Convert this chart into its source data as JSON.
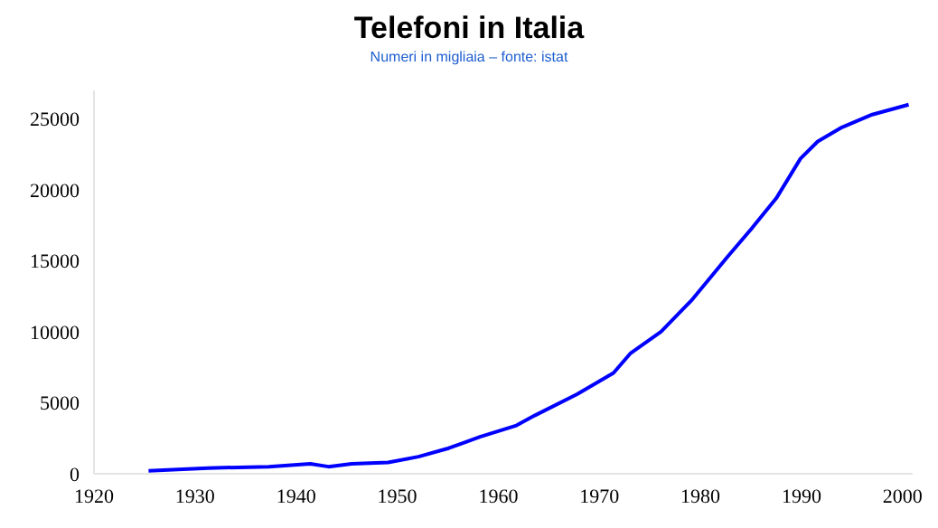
{
  "chart_data": {
    "type": "line",
    "title": "Telefoni in Italia",
    "subtitle": "Numeri in migliaia – fonte: istat",
    "x": [
      1925.4,
      1928.3,
      1931.3,
      1937.3,
      1941.4,
      1943.2,
      1945.5,
      1949.1,
      1952.1,
      1955.1,
      1958.2,
      1961.8,
      1963.6,
      1967.8,
      1971.4,
      1973.1,
      1976.1,
      1979.1,
      1982.7,
      1985.1,
      1987.5,
      1989.9,
      1991.6,
      1994.0,
      1997.0,
      2000.6
    ],
    "series": [
      {
        "color": "#0000ff",
        "values": [
          200,
          300,
          400,
          500,
          700,
          500,
          700,
          800,
          1200,
          1800,
          2600,
          3400,
          4100,
          5600,
          7100,
          8500,
          10000,
          12200,
          15300,
          17300,
          19400,
          22200,
          23400,
          24400,
          25300,
          26000
        ]
      }
    ],
    "xlim": [
      1920,
      2001
    ],
    "xticks": [
      1920,
      1930,
      1940,
      1950,
      1960,
      1970,
      1980,
      1990,
      2000
    ],
    "ylim": [
      0,
      27000
    ],
    "yticks": [
      0,
      5000,
      10000,
      15000,
      20000,
      25000
    ],
    "grid": false,
    "legend": false,
    "marker": "none",
    "line_style": "solid"
  }
}
